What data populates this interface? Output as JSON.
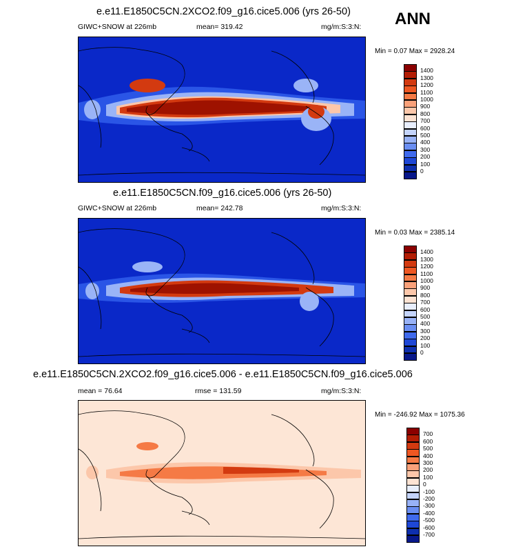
{
  "season": "ANN",
  "panels": [
    {
      "title": "e.e11.E1850C5CN.2XCO2.f09_g16.cice5.006 (yrs 26-50)",
      "left_label": "GIWC+SNOW at 226mb",
      "center_label": "mean= 319.42",
      "units": "mg/m:S:3:N:",
      "min_label": "Min =",
      "min_value": "0.07",
      "max_label": "Max =",
      "max_value": "2928.24",
      "colorbar_labels": [
        "1400",
        "1300",
        "1200",
        "1100",
        "1000",
        "900",
        "800",
        "700",
        "600",
        "500",
        "400",
        "300",
        "200",
        "100",
        "0"
      ],
      "colorbar_colors": [
        "#8b0000",
        "#b31d04",
        "#d33a10",
        "#ee5722",
        "#f57a45",
        "#f9a17a",
        "#fcc7aa",
        "#fde3d3",
        "#e8eefc",
        "#c4d4fb",
        "#98b2f7",
        "#6a8ef2",
        "#3f6aed",
        "#1e47d6",
        "#0e2fae",
        "#08188a"
      ]
    },
    {
      "title": "e.e11.E1850C5CN.f09_g16.cice5.006 (yrs 26-50)",
      "left_label": "GIWC+SNOW at 226mb",
      "center_label": "mean= 242.78",
      "units": "mg/m:S:3:N:",
      "min_label": "Min =",
      "min_value": "0.03",
      "max_label": "Max =",
      "max_value": "2385.14",
      "colorbar_labels": [
        "1400",
        "1300",
        "1200",
        "1100",
        "1000",
        "900",
        "800",
        "700",
        "600",
        "500",
        "400",
        "300",
        "200",
        "100",
        "0"
      ],
      "colorbar_colors": [
        "#8b0000",
        "#b31d04",
        "#d33a10",
        "#ee5722",
        "#f57a45",
        "#f9a17a",
        "#fcc7aa",
        "#fde3d3",
        "#e8eefc",
        "#c4d4fb",
        "#98b2f7",
        "#6a8ef2",
        "#3f6aed",
        "#1e47d6",
        "#0e2fae",
        "#08188a"
      ]
    },
    {
      "title": "e.e11.E1850C5CN.2XCO2.f09_g16.cice5.006 - e.e11.E1850C5CN.f09_g16.cice5.006",
      "left_label": "mean = 76.64",
      "center_label": "rmse = 131.59",
      "units": "mg/m:S:3:N:",
      "min_label": "Min =",
      "min_value": "-246.92",
      "max_label": "Max =",
      "max_value": "1075.36",
      "colorbar_labels": [
        "700",
        "600",
        "500",
        "400",
        "300",
        "200",
        "100",
        "0",
        "-100",
        "-200",
        "-300",
        "-400",
        "-500",
        "-600",
        "-700"
      ],
      "colorbar_colors": [
        "#8b0000",
        "#b31d04",
        "#d33a10",
        "#ee5722",
        "#f57a45",
        "#f9a17a",
        "#fcc7aa",
        "#fde3d3",
        "#e8eefc",
        "#c4d4fb",
        "#98b2f7",
        "#6a8ef2",
        "#3f6aed",
        "#1e47d6",
        "#0e2fae",
        "#08188a"
      ]
    }
  ],
  "colors": {
    "ocean_low": "#0a28c8",
    "low": "#2a55e6",
    "mid_low": "#9ab4f7",
    "neutral": "#fde3d3",
    "mid_high": "#f57a45",
    "high": "#d33a10",
    "extreme": "#9e1200",
    "diff_bg": "#fde6d6"
  }
}
